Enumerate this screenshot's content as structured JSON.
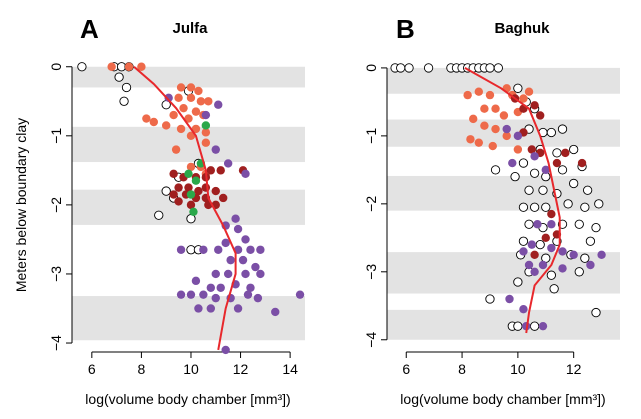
{
  "chart_data": [
    {
      "type": "scatter",
      "panel_label": "A",
      "title": "Julfa",
      "y_label": "Meters below boundary clay",
      "x_label": "log(volume body chamber [mm³])",
      "xlim": [
        5.2,
        14.6
      ],
      "ylim": [
        -4.13,
        0.17
      ],
      "xticks": [
        6,
        8,
        10,
        12,
        14
      ],
      "yticks": [
        0,
        {
          "value": -1,
          "label": "−1"
        },
        {
          "value": -2,
          "label": "−2"
        },
        {
          "value": -3,
          "label": "−3"
        },
        {
          "value": -4,
          "label": "−4"
        }
      ],
      "bands": [
        [
          0,
          -0.3
        ],
        [
          -0.87,
          -1.38
        ],
        [
          -1.78,
          -2.29
        ],
        [
          -3.32,
          -3.96
        ]
      ],
      "band_color": "#e3e3e3",
      "series": [
        {
          "color": "#ffffff",
          "x": [
            5.6,
            6.9,
            7.2,
            7.5,
            7.1,
            7.4,
            7.3,
            9.9,
            9.0,
            10.3,
            9.5,
            9.0,
            9.3,
            8.7,
            10.0,
            10.0,
            10.3
          ],
          "y": [
            0,
            0,
            0,
            0,
            -0.15,
            -0.3,
            -0.5,
            -0.35,
            -0.55,
            -1.4,
            -1.6,
            -1.8,
            -1.9,
            -2.15,
            -2.2,
            -2.65,
            -2.65
          ]
        },
        {
          "color": "#ee6a4a",
          "x": [
            6.8,
            7.5,
            8.0,
            9.6,
            10.0,
            10.3,
            9.5,
            10.0,
            10.4,
            10.7,
            9.7,
            10.2,
            10.5,
            9.3,
            9.9,
            8.2,
            8.5,
            9.0,
            9.6,
            10.2,
            10.6,
            9.4,
            10.0,
            10.6,
            10.0,
            10.4,
            10.6
          ],
          "y": [
            0,
            0,
            0,
            -0.3,
            -0.3,
            -0.35,
            -0.45,
            -0.45,
            -0.5,
            -0.5,
            -0.6,
            -0.65,
            -0.7,
            -0.7,
            -0.75,
            -0.75,
            -0.8,
            -0.85,
            -0.9,
            -0.9,
            -0.95,
            -1.2,
            -1.0,
            -1.1,
            -1.45,
            -1.45,
            -1.55
          ]
        },
        {
          "color": "#a01f1f",
          "x": [
            9.3,
            9.7,
            10.2,
            10.8,
            11.2,
            12.1,
            9.5,
            9.9,
            10.3,
            10.6,
            11.0,
            9.8,
            10.2,
            10.6,
            11.3,
            9.5,
            10.0,
            10.7,
            11.0,
            9.3,
            10.6
          ],
          "y": [
            -1.55,
            -1.6,
            -1.6,
            -1.5,
            -1.5,
            -1.5,
            -1.75,
            -1.75,
            -1.8,
            -1.75,
            -1.8,
            -1.85,
            -1.9,
            -1.9,
            -1.9,
            -1.95,
            -2.0,
            -2.0,
            -2.0,
            -1.85,
            -1.6
          ]
        },
        {
          "color": "#7b4fa6",
          "x": [
            9.1,
            10.6,
            11.1,
            11.0,
            11.5,
            12.2,
            11.4,
            11.8,
            11.9,
            12.2,
            11.4,
            11.9,
            12.4,
            12.8,
            9.6,
            10.5,
            11.1,
            11.6,
            12.1,
            12.6,
            11.0,
            11.5,
            12.2,
            12.8,
            10.2,
            10.8,
            11.2,
            11.8,
            12.4,
            9.6,
            10.0,
            10.5,
            11.0,
            11.6,
            12.3,
            12.7,
            14.4,
            10.3,
            10.8,
            11.9,
            11.4,
            13.4
          ],
          "y": [
            -0.45,
            -0.7,
            -0.55,
            -1.2,
            -1.4,
            -1.55,
            -2.3,
            -2.2,
            -2.35,
            -2.5,
            -2.55,
            -2.65,
            -2.65,
            -2.65,
            -2.65,
            -2.65,
            -2.65,
            -2.8,
            -2.8,
            -2.9,
            -3.0,
            -3.0,
            -3.0,
            -3.0,
            -3.1,
            -3.2,
            -3.2,
            -3.15,
            -3.2,
            -3.3,
            -3.3,
            -3.3,
            -3.35,
            -3.35,
            -3.3,
            -3.35,
            -3.3,
            -3.5,
            -3.5,
            -3.5,
            -4.1,
            -3.55
          ]
        },
        {
          "color": "#2aa84a",
          "x": [
            10.6,
            10.4,
            9.9,
            10.2,
            10.1,
            10.0
          ],
          "y": [
            -0.85,
            -1.4,
            -1.55,
            -1.65,
            -2.1,
            -1.85
          ]
        }
      ],
      "trend": {
        "color": "#e8282c",
        "x": [
          7.7,
          8.5,
          9.4,
          10.2,
          10.6,
          10.7,
          11.3,
          11.8,
          11.8,
          11.4,
          11.1
        ],
        "y": [
          0,
          -0.25,
          -0.6,
          -1.0,
          -1.5,
          -1.9,
          -2.3,
          -2.7,
          -3.0,
          -3.5,
          -4.1
        ]
      }
    },
    {
      "type": "scatter",
      "panel_label": "B",
      "title": "Baghuk",
      "x_label": "log(volume body chamber [mm³])",
      "xlim": [
        5.31,
        13.66
      ],
      "ylim": [
        -4.18,
        0.19
      ],
      "xticks": [
        6,
        8,
        10,
        12
      ],
      "yticks": [
        0,
        {
          "value": -1,
          "label": "−1"
        },
        {
          "value": -2,
          "label": "−2"
        },
        {
          "value": -3,
          "label": "−3"
        },
        {
          "value": -4,
          "label": "−4"
        }
      ],
      "bands": [
        [
          0,
          -0.38
        ],
        [
          -0.76,
          -1.16
        ],
        [
          -1.59,
          -2.1
        ],
        [
          -2.71,
          -3.32
        ],
        [
          -3.56,
          -4.0
        ]
      ],
      "band_color": "#e3e3e3",
      "series": [
        {
          "color": "#ffffff",
          "x": [
            5.6,
            5.8,
            6.1,
            6.8,
            7.6,
            7.8,
            8.0,
            8.2,
            8.4,
            8.6,
            8.8,
            9.0,
            9.3,
            10.0,
            10.3,
            10.6,
            10.4,
            10.9,
            11.2,
            11.6,
            10.8,
            11.4,
            12.0,
            10.2,
            10.6,
            11.0,
            11.6,
            12.3,
            9.9,
            10.4,
            10.9,
            11.4,
            12.0,
            12.5,
            10.2,
            10.6,
            11.0,
            11.8,
            12.4,
            12.9,
            10.4,
            10.9,
            11.6,
            12.2,
            12.8,
            10.2,
            10.8,
            11.4,
            12.6,
            10.1,
            11.0,
            11.9,
            12.4,
            10.4,
            11.2,
            12.2,
            10.0,
            11.3,
            9.2,
            9.0,
            12.8,
            9.8,
            10.0,
            10.6
          ],
          "y": [
            0,
            0,
            0,
            0,
            0,
            0,
            0,
            0,
            0,
            0,
            0,
            0,
            0,
            -0.3,
            -0.5,
            -0.6,
            -0.9,
            -0.95,
            -0.95,
            -0.9,
            -1.2,
            -1.25,
            -1.2,
            -1.4,
            -1.55,
            -1.6,
            -1.5,
            -1.45,
            -1.6,
            -1.8,
            -1.8,
            -1.85,
            -1.7,
            -1.8,
            -2.05,
            -2.05,
            -2.05,
            -2.0,
            -2.05,
            -2.0,
            -2.3,
            -2.35,
            -2.3,
            -2.3,
            -2.35,
            -2.55,
            -2.6,
            -2.55,
            -2.55,
            -2.75,
            -2.8,
            -2.75,
            -2.8,
            -3.0,
            -3.05,
            -3.0,
            -3.15,
            -3.25,
            -1.5,
            -3.4,
            -3.6,
            -3.8,
            -3.8,
            -3.8
          ]
        },
        {
          "color": "#ee6a4a",
          "x": [
            8.2,
            8.6,
            9.0,
            9.6,
            9.8,
            10.2,
            8.8,
            9.2,
            9.5,
            10.0,
            8.4,
            8.8,
            9.2,
            9.6,
            8.3,
            8.6,
            9.1,
            10.0,
            10.4
          ],
          "y": [
            -0.4,
            -0.35,
            -0.4,
            -0.3,
            -0.4,
            -0.45,
            -0.6,
            -0.6,
            -0.7,
            -0.65,
            -0.75,
            -0.85,
            -0.9,
            -1.0,
            -1.05,
            -1.1,
            -1.15,
            -1.2,
            -0.35
          ]
        },
        {
          "color": "#a01f1f",
          "x": [
            9.9,
            10.2,
            10.6,
            10.8,
            10.2,
            10.5,
            10.8,
            11.7,
            11.4,
            12.3,
            11.2,
            11.0,
            11.4,
            10.6
          ],
          "y": [
            -0.45,
            -0.6,
            -0.55,
            -0.7,
            -0.95,
            -1.2,
            -1.25,
            -1.25,
            -1.4,
            -1.4,
            -2.15,
            -2.5,
            -2.45,
            -2.75
          ]
        },
        {
          "color": "#7b4fa6",
          "x": [
            9.6,
            10.0,
            9.8,
            10.6,
            11.0,
            10.7,
            11.2,
            10.5,
            11.2,
            10.2,
            11.6,
            12.0,
            13.0,
            10.4,
            10.9,
            11.6,
            12.6,
            10.6,
            9.7,
            10.2,
            10.3,
            10.9
          ],
          "y": [
            -0.9,
            -1.0,
            -1.4,
            -1.3,
            -1.5,
            -2.3,
            -2.3,
            -2.6,
            -2.65,
            -2.7,
            -2.7,
            -2.75,
            -2.75,
            -2.9,
            -2.9,
            -2.95,
            -2.9,
            -3.0,
            -3.4,
            -3.55,
            -3.8,
            -3.8
          ]
        }
      ],
      "trend": {
        "color": "#e8282c",
        "x": [
          8.1,
          9.4,
          10.4,
          10.8,
          11.1,
          11.3,
          11.5,
          11.5,
          11.2,
          10.6,
          10.4,
          10.3
        ],
        "y": [
          0,
          -0.3,
          -0.6,
          -1.0,
          -1.4,
          -1.8,
          -2.2,
          -2.6,
          -2.9,
          -3.2,
          -3.6,
          -3.9
        ]
      }
    }
  ]
}
